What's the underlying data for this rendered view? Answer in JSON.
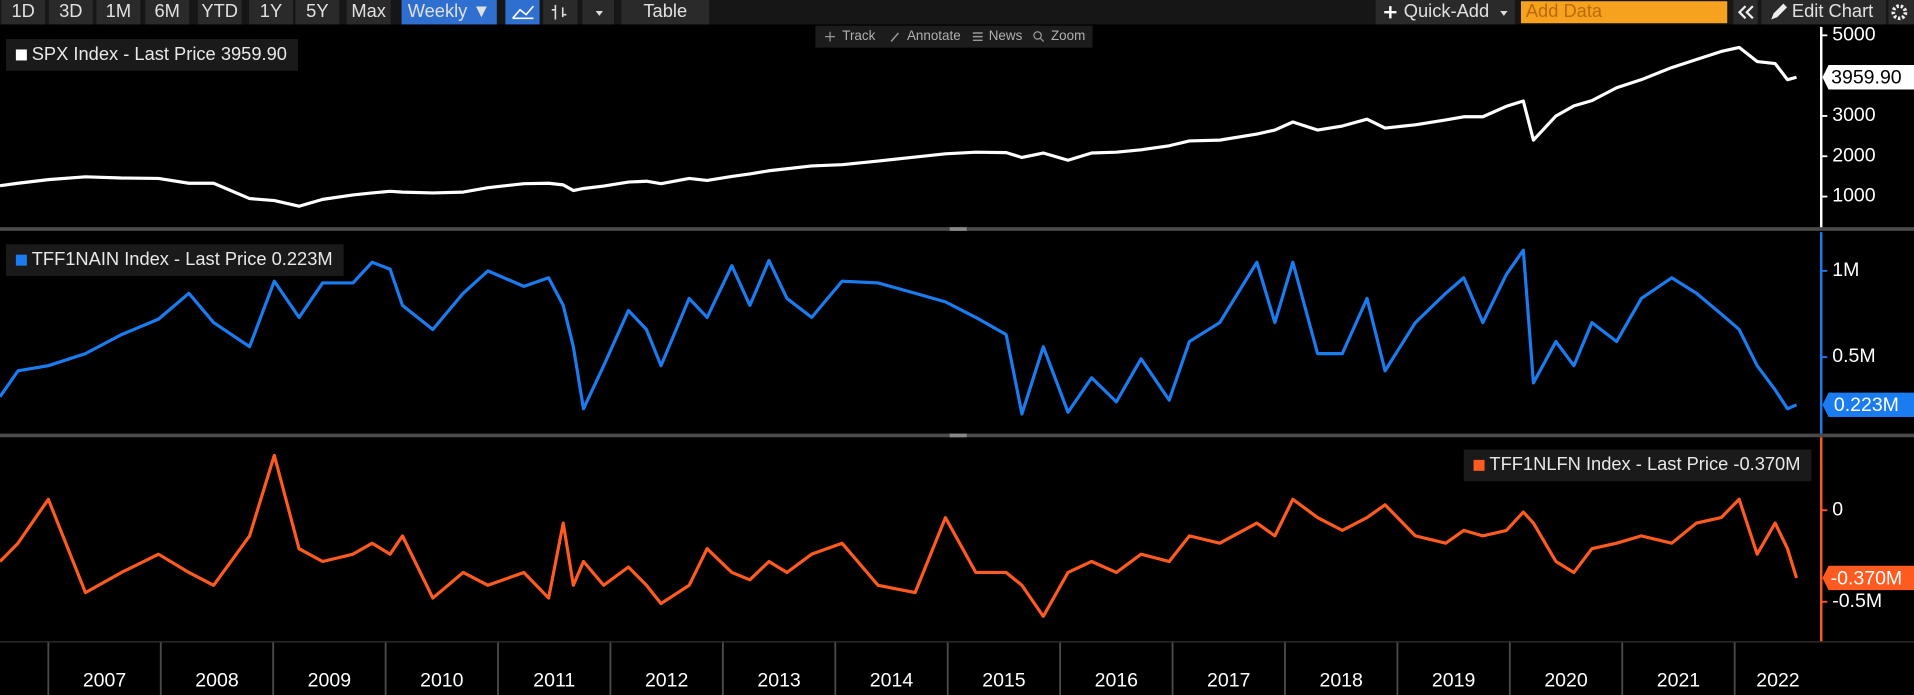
{
  "toolbar": {
    "buttons": [
      "1D",
      "3D",
      "1M",
      "6M",
      "YTD",
      "1Y",
      "5Y",
      "Max"
    ],
    "interval": "Weekly ▼",
    "table": "Table",
    "quick_add": "Quick-Add",
    "add_data": "Add Data",
    "edit_chart": "Edit Chart",
    "tools": [
      "Track",
      "Annotate",
      "News",
      "Zoom"
    ]
  },
  "chart_data": [
    {
      "type": "line",
      "legend": "upper left",
      "last_price_label": "3959.90",
      "x": [
        2006.57,
        2006.73,
        2007.0,
        2007.33,
        2007.65,
        2007.98,
        2008.25,
        2008.47,
        2008.79,
        2009.01,
        2009.23,
        2009.44,
        2009.71,
        2009.88,
        2010.04,
        2010.15,
        2010.42,
        2010.69,
        2010.91,
        2011.23,
        2011.45,
        2011.58,
        2011.67,
        2011.76,
        2011.94,
        2012.16,
        2012.32,
        2012.45,
        2012.7,
        2012.86,
        2013.08,
        2013.24,
        2013.41,
        2013.57,
        2013.79,
        2014.06,
        2014.38,
        2014.71,
        2014.98,
        2015.25,
        2015.52,
        2015.66,
        2015.85,
        2016.07,
        2016.28,
        2016.5,
        2016.72,
        2016.97,
        2017.15,
        2017.42,
        2017.75,
        2017.91,
        2018.07,
        2018.29,
        2018.51,
        2018.73,
        2018.89,
        2019.16,
        2019.43,
        2019.59,
        2019.76,
        2019.97,
        2020.12,
        2020.21,
        2020.41,
        2020.57,
        2020.73,
        2020.95,
        2021.17,
        2021.44,
        2021.66,
        2021.88,
        2022.04,
        2022.2,
        2022.36,
        2022.47,
        2022.55
      ],
      "series": [
        {
          "name": "SPX Index - Last Price 3959.90",
          "color": "#ffffff",
          "values": [
            1270,
            1330,
            1420,
            1490,
            1460,
            1450,
            1330,
            1330,
            950,
            900,
            760,
            930,
            1040,
            1090,
            1130,
            1110,
            1090,
            1110,
            1220,
            1320,
            1330,
            1290,
            1150,
            1200,
            1260,
            1360,
            1380,
            1320,
            1450,
            1400,
            1500,
            1560,
            1640,
            1690,
            1760,
            1790,
            1880,
            1980,
            2060,
            2100,
            2090,
            1970,
            2080,
            1900,
            2080,
            2100,
            2160,
            2260,
            2380,
            2400,
            2550,
            2650,
            2850,
            2650,
            2750,
            2920,
            2700,
            2780,
            2900,
            2980,
            2980,
            3240,
            3370,
            2400,
            3000,
            3250,
            3380,
            3700,
            3900,
            4200,
            4400,
            4600,
            4700,
            4350,
            4300,
            3900,
            3959.9
          ]
        }
      ],
      "xlim": [
        2006.57,
        2022.77
      ],
      "ylim": [
        240,
        5210
      ],
      "yticks": [
        1000,
        2000,
        3000,
        5000
      ]
    },
    {
      "type": "line",
      "legend": "upper left",
      "last_price_label": "0.223M",
      "x": [
        2006.57,
        2006.73,
        2007.0,
        2007.33,
        2007.65,
        2007.98,
        2008.25,
        2008.47,
        2008.79,
        2009.01,
        2009.23,
        2009.44,
        2009.71,
        2009.88,
        2010.04,
        2010.15,
        2010.42,
        2010.69,
        2010.91,
        2011.23,
        2011.45,
        2011.58,
        2011.67,
        2011.76,
        2011.94,
        2012.16,
        2012.32,
        2012.45,
        2012.7,
        2012.86,
        2013.08,
        2013.24,
        2013.41,
        2013.57,
        2013.79,
        2014.06,
        2014.38,
        2014.71,
        2014.98,
        2015.25,
        2015.52,
        2015.66,
        2015.85,
        2016.07,
        2016.28,
        2016.5,
        2016.72,
        2016.97,
        2017.15,
        2017.42,
        2017.75,
        2017.91,
        2018.07,
        2018.29,
        2018.51,
        2018.73,
        2018.89,
        2019.16,
        2019.43,
        2019.59,
        2019.76,
        2019.97,
        2020.12,
        2020.21,
        2020.41,
        2020.57,
        2020.73,
        2020.95,
        2021.17,
        2021.44,
        2021.66,
        2021.88,
        2022.04,
        2022.2,
        2022.36,
        2022.47,
        2022.55
      ],
      "series": [
        {
          "name": "TFF1NAIN Index - Last Price 0.223M",
          "color": "#1a7cf0",
          "values": [
            0.27,
            0.42,
            0.45,
            0.52,
            0.63,
            0.72,
            0.87,
            0.7,
            0.56,
            0.94,
            0.73,
            0.93,
            0.93,
            1.05,
            1.01,
            0.8,
            0.66,
            0.87,
            1.0,
            0.91,
            0.96,
            0.8,
            0.56,
            0.2,
            0.45,
            0.77,
            0.66,
            0.45,
            0.84,
            0.73,
            1.03,
            0.8,
            1.06,
            0.84,
            0.73,
            0.94,
            0.93,
            0.87,
            0.82,
            0.73,
            0.63,
            0.17,
            0.56,
            0.18,
            0.38,
            0.24,
            0.49,
            0.25,
            0.59,
            0.7,
            1.05,
            0.7,
            1.05,
            0.52,
            0.52,
            0.84,
            0.42,
            0.7,
            0.87,
            0.96,
            0.7,
            0.98,
            1.12,
            0.35,
            0.59,
            0.45,
            0.7,
            0.59,
            0.84,
            0.96,
            0.87,
            0.75,
            0.66,
            0.45,
            0.31,
            0.2,
            0.223
          ]
        }
      ],
      "xlim": [
        2006.57,
        2022.77
      ],
      "ylim": [
        0.056,
        1.225
      ],
      "yticks": [
        {
          "value": 0.5,
          "label": "0.5M"
        },
        {
          "value": 1,
          "label": "1M"
        }
      ]
    },
    {
      "type": "line",
      "legend": "upper right",
      "last_price_label": "-0.370M",
      "x": [
        2006.57,
        2006.73,
        2007.0,
        2007.33,
        2007.65,
        2007.98,
        2008.25,
        2008.47,
        2008.79,
        2009.01,
        2009.23,
        2009.44,
        2009.71,
        2009.88,
        2010.04,
        2010.15,
        2010.42,
        2010.69,
        2010.91,
        2011.23,
        2011.45,
        2011.58,
        2011.67,
        2011.76,
        2011.94,
        2012.16,
        2012.32,
        2012.45,
        2012.7,
        2012.86,
        2013.08,
        2013.24,
        2013.41,
        2013.57,
        2013.79,
        2014.06,
        2014.38,
        2014.71,
        2014.98,
        2015.25,
        2015.52,
        2015.66,
        2015.85,
        2016.07,
        2016.28,
        2016.5,
        2016.72,
        2016.97,
        2017.15,
        2017.42,
        2017.75,
        2017.91,
        2018.07,
        2018.29,
        2018.51,
        2018.73,
        2018.89,
        2019.16,
        2019.43,
        2019.59,
        2019.76,
        2019.97,
        2020.12,
        2020.21,
        2020.41,
        2020.57,
        2020.73,
        2020.95,
        2021.17,
        2021.44,
        2021.66,
        2021.88,
        2022.04,
        2022.2,
        2022.36,
        2022.47,
        2022.55
      ],
      "series": [
        {
          "name": "TFF1NLFN Index - Last Price -0.370M",
          "color": "#ff5a1f",
          "values": [
            -0.28,
            -0.18,
            0.06,
            -0.45,
            -0.34,
            -0.24,
            -0.34,
            -0.41,
            -0.14,
            0.3,
            -0.21,
            -0.28,
            -0.24,
            -0.18,
            -0.24,
            -0.14,
            -0.48,
            -0.34,
            -0.41,
            -0.34,
            -0.48,
            -0.07,
            -0.41,
            -0.28,
            -0.41,
            -0.31,
            -0.41,
            -0.51,
            -0.41,
            -0.21,
            -0.34,
            -0.38,
            -0.28,
            -0.34,
            -0.24,
            -0.18,
            -0.41,
            -0.45,
            -0.04,
            -0.34,
            -0.34,
            -0.41,
            -0.58,
            -0.34,
            -0.28,
            -0.34,
            -0.24,
            -0.28,
            -0.14,
            -0.18,
            -0.07,
            -0.14,
            0.06,
            -0.04,
            -0.11,
            -0.04,
            0.03,
            -0.14,
            -0.18,
            -0.11,
            -0.14,
            -0.11,
            -0.01,
            -0.07,
            -0.28,
            -0.34,
            -0.21,
            -0.18,
            -0.14,
            -0.18,
            -0.07,
            -0.04,
            0.06,
            -0.24,
            -0.07,
            -0.21,
            -0.37
          ]
        }
      ],
      "xlim": [
        2006.57,
        2022.77
      ],
      "ylim": [
        -0.716,
        0.399
      ],
      "yticks": [
        {
          "value": -0.5,
          "label": "-0.5M"
        },
        0
      ],
      "xticks": [
        2007,
        2008,
        2009,
        2010,
        2011,
        2012,
        2013,
        2014,
        2015,
        2016,
        2017,
        2018,
        2019,
        2020,
        2021,
        2022
      ]
    }
  ]
}
